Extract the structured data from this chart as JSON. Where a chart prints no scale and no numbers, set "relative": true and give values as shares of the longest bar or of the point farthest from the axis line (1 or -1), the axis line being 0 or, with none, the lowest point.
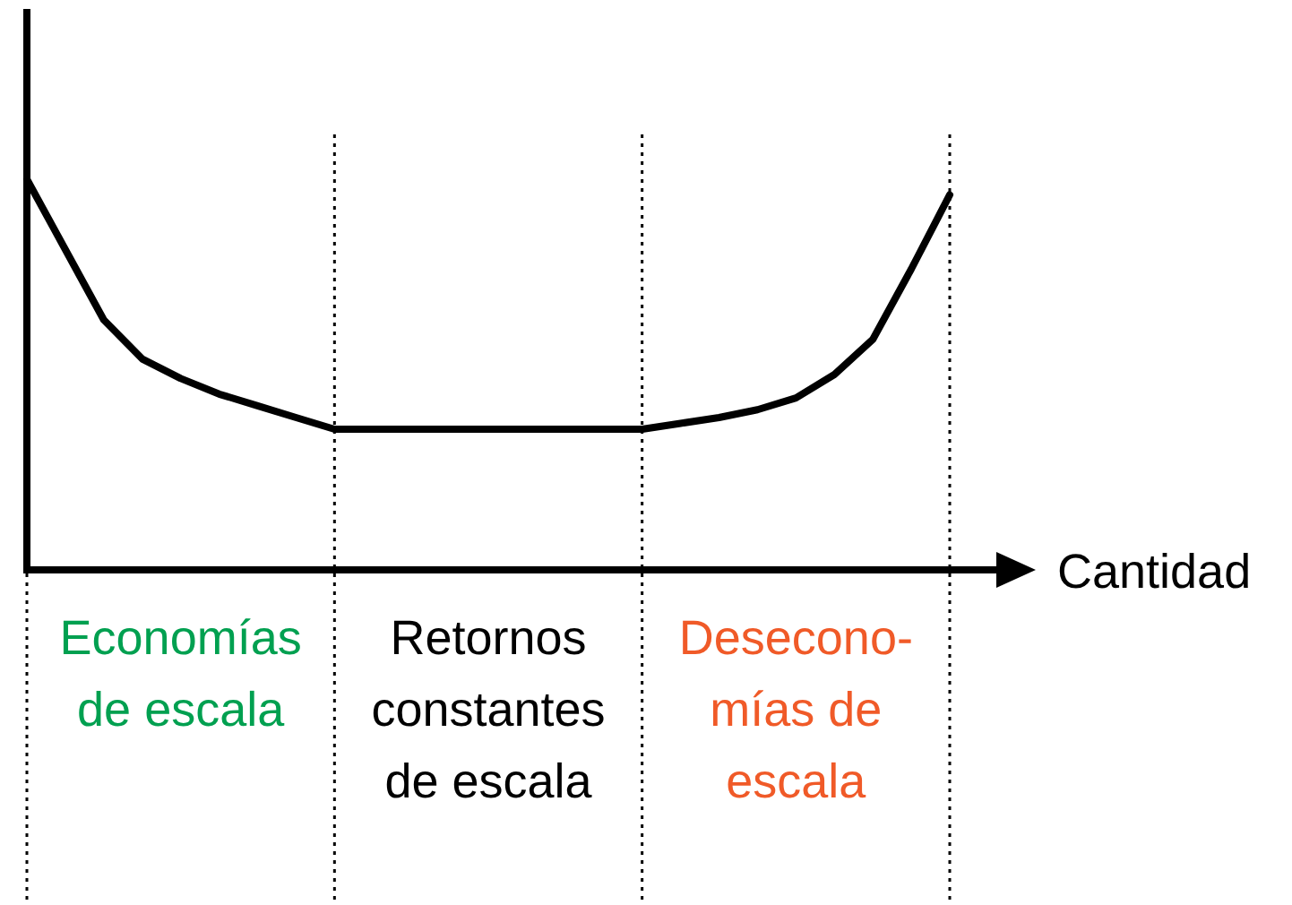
{
  "chart_data": {
    "type": "line",
    "relative": true,
    "xlabel": "Cantidad",
    "marker": "none",
    "line_style": "solid",
    "grid": "x",
    "categories": [
      null,
      null,
      null,
      null,
      null,
      null,
      null,
      null,
      null,
      null,
      null,
      null,
      null,
      null,
      null,
      null,
      null,
      null,
      null,
      null,
      null,
      null,
      null,
      null,
      null
    ],
    "series": [
      {
        "color": "#000000",
        "values": [
          1,
          0.82,
          0.64,
          0.54,
          0.49,
          0.45,
          0.42,
          0.39,
          0.36,
          0.36,
          0.36,
          0.36,
          0.36,
          0.36,
          0.36,
          0.36,
          0.36,
          0.375,
          0.39,
          0.41,
          0.44,
          0.5,
          0.59,
          0.77,
          0.96
        ]
      }
    ],
    "annotations": [
      "Economías\nde escala",
      "Retornos\nconstantes\nde escala",
      "Desecono-\nmías de\nescala"
    ]
  }
}
